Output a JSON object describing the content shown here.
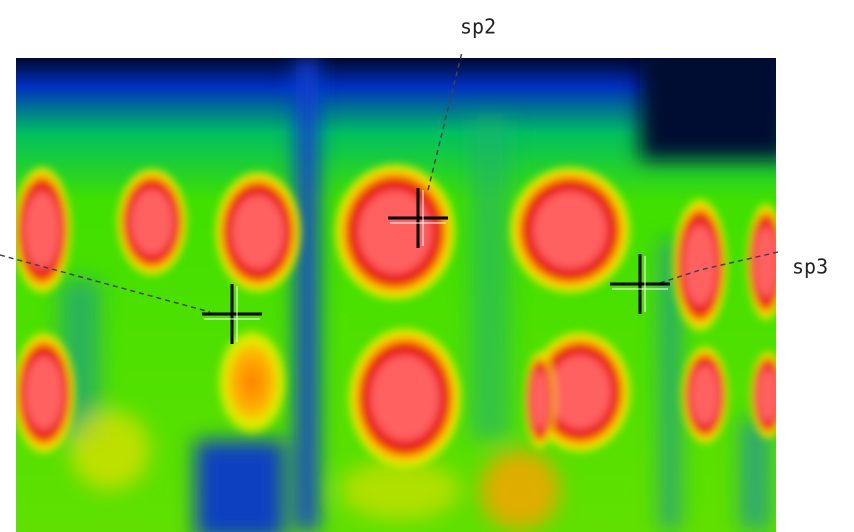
{
  "markers": [
    {
      "label": "sp2"
    },
    {
      "label": "sp3"
    }
  ]
}
